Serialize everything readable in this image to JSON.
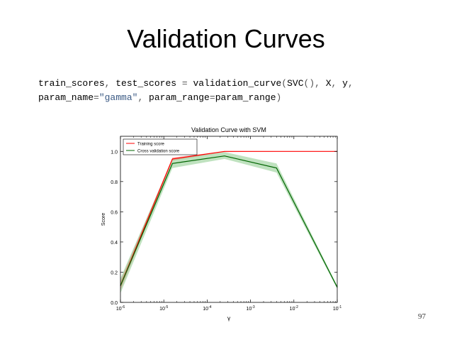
{
  "slide": {
    "title": "Validation Curves",
    "page_number": "97"
  },
  "code": {
    "line1": [
      {
        "t": "train_scores",
        "c": "n"
      },
      {
        "t": ", ",
        "c": "p"
      },
      {
        "t": "test_scores ",
        "c": "n"
      },
      {
        "t": "=",
        "c": "o"
      },
      {
        "t": " validation_curve",
        "c": "n"
      },
      {
        "t": "(",
        "c": "p"
      },
      {
        "t": "SVC",
        "c": "n"
      },
      {
        "t": "(), ",
        "c": "p"
      },
      {
        "t": "X",
        "c": "n"
      },
      {
        "t": ", ",
        "c": "p"
      },
      {
        "t": "y",
        "c": "n"
      },
      {
        "t": ",",
        "c": "p"
      }
    ],
    "line2": [
      {
        "t": "param_name",
        "c": "n"
      },
      {
        "t": "=",
        "c": "o"
      },
      {
        "t": "\"gamma\"",
        "c": "s"
      },
      {
        "t": ", ",
        "c": "p"
      },
      {
        "t": "param_range",
        "c": "n"
      },
      {
        "t": "=",
        "c": "o"
      },
      {
        "t": "param_range",
        "c": "n"
      },
      {
        "t": ")",
        "c": "p"
      }
    ]
  },
  "chart_data": {
    "type": "line",
    "title": "Validation Curve with SVM",
    "xlabel": "γ",
    "ylabel": "Score",
    "xscale": "log",
    "x": [
      1e-06,
      1.584893e-05,
      0.0002511886,
      0.003981072,
      0.1
    ],
    "xlim": [
      1e-06,
      0.1
    ],
    "ylim": [
      0.0,
      1.1
    ],
    "xticks": [
      1e-06,
      1e-05,
      0.0001,
      0.001,
      0.01,
      0.1
    ],
    "xtick_exponents": [
      "-6",
      "-5",
      "-4",
      "-3",
      "-2",
      "-1"
    ],
    "xtick_base": "10",
    "yticks": [
      "0.0",
      "0.2",
      "0.4",
      "0.6",
      "0.8",
      "1.0"
    ],
    "ytick_values": [
      0.0,
      0.2,
      0.4,
      0.6,
      0.8,
      1.0
    ],
    "grid": false,
    "legend_position": "upper-left",
    "series": [
      {
        "name": "Training score",
        "color": "#ff0000",
        "band_color": "#ff0000",
        "values": [
          0.11,
          0.95,
          1.0,
          1.0,
          1.0
        ],
        "band_low": [
          0.08,
          0.94,
          0.995,
          0.999,
          1.0
        ],
        "band_high": [
          0.14,
          0.96,
          1.0,
          1.0,
          1.0
        ]
      },
      {
        "name": "Cross validation score",
        "color": "#006400",
        "band_color": "#2ca02c",
        "values": [
          0.11,
          0.92,
          0.97,
          0.89,
          0.1
        ],
        "band_low": [
          0.06,
          0.89,
          0.95,
          0.86,
          0.09
        ],
        "band_high": [
          0.16,
          0.95,
          0.995,
          0.92,
          0.11
        ]
      }
    ]
  }
}
